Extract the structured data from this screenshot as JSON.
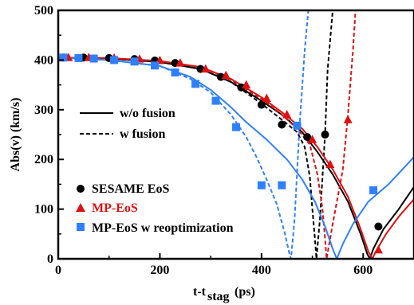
{
  "chart_data": {
    "type": "line",
    "xlabel": "t-t",
    "xlabel_sub": "stag",
    "xlabel_unit": "(ps)",
    "ylabel": "Abs(v) (km/s)",
    "xlim": [
      0,
      700
    ],
    "ylim": [
      0,
      500
    ],
    "xticks": [
      "0",
      "200",
      "400",
      "600"
    ],
    "yticks": [
      "0",
      "100",
      "200",
      "300",
      "400",
      "500"
    ],
    "grid": false,
    "colors": {
      "sesame": "#000000",
      "mp": "#dd1111",
      "reopt": "#2f80ff"
    },
    "line_legend": [
      {
        "label": "w/o fusion",
        "style": "solid"
      },
      {
        "label": "w fusion",
        "style": "dashed"
      }
    ],
    "series": [
      {
        "name": "SESAME EoS",
        "color": "#000000",
        "marker": "circle",
        "markers": [
          [
            10,
            405
          ],
          [
            50,
            405
          ],
          [
            100,
            404
          ],
          [
            150,
            402
          ],
          [
            190,
            399
          ],
          [
            230,
            394
          ],
          [
            280,
            382
          ],
          [
            320,
            366
          ],
          [
            360,
            345
          ],
          [
            400,
            310
          ],
          [
            440,
            270
          ],
          [
            490,
            245
          ],
          [
            525,
            250
          ],
          [
            630,
            65
          ]
        ],
        "solid": [
          [
            0,
            405
          ],
          [
            100,
            403
          ],
          [
            200,
            396
          ],
          [
            280,
            382
          ],
          [
            340,
            356
          ],
          [
            400,
            318
          ],
          [
            440,
            290
          ],
          [
            480,
            255
          ],
          [
            510,
            215
          ],
          [
            540,
            170
          ],
          [
            570,
            115
          ],
          [
            595,
            50
          ],
          [
            608,
            10
          ],
          [
            613,
            0
          ],
          [
            620,
            20
          ],
          [
            640,
            60
          ],
          [
            670,
            100
          ],
          [
            700,
            145
          ]
        ],
        "dashed": [
          [
            0,
            405
          ],
          [
            100,
            403
          ],
          [
            200,
            396
          ],
          [
            280,
            382
          ],
          [
            340,
            356
          ],
          [
            400,
            312
          ],
          [
            440,
            280
          ],
          [
            470,
            255
          ],
          [
            485,
            225
          ],
          [
            495,
            165
          ],
          [
            500,
            100
          ],
          [
            505,
            40
          ],
          [
            508,
            0
          ],
          [
            515,
            80
          ],
          [
            525,
            250
          ],
          [
            530,
            380
          ],
          [
            540,
            500
          ]
        ]
      },
      {
        "name": "MP-EoS",
        "color": "#dd1111",
        "marker": "triangle",
        "markers": [
          [
            20,
            405
          ],
          [
            60,
            405
          ],
          [
            110,
            404
          ],
          [
            160,
            402
          ],
          [
            200,
            399
          ],
          [
            240,
            394
          ],
          [
            290,
            382
          ],
          [
            330,
            369
          ],
          [
            370,
            350
          ],
          [
            410,
            323
          ],
          [
            450,
            290
          ],
          [
            500,
            240
          ],
          [
            535,
            190
          ],
          [
            570,
            280
          ],
          [
            630,
            18
          ]
        ],
        "solid": [
          [
            0,
            405
          ],
          [
            100,
            404
          ],
          [
            200,
            398
          ],
          [
            280,
            386
          ],
          [
            340,
            362
          ],
          [
            400,
            325
          ],
          [
            440,
            295
          ],
          [
            480,
            262
          ],
          [
            510,
            225
          ],
          [
            540,
            180
          ],
          [
            570,
            125
          ],
          [
            595,
            60
          ],
          [
            610,
            15
          ],
          [
            618,
            0
          ],
          [
            625,
            15
          ],
          [
            645,
            50
          ],
          [
            670,
            85
          ],
          [
            700,
            120
          ]
        ],
        "dashed": [
          [
            0,
            405
          ],
          [
            100,
            404
          ],
          [
            200,
            398
          ],
          [
            280,
            386
          ],
          [
            340,
            360
          ],
          [
            400,
            322
          ],
          [
            440,
            290
          ],
          [
            470,
            262
          ],
          [
            495,
            230
          ],
          [
            510,
            170
          ],
          [
            520,
            100
          ],
          [
            525,
            40
          ],
          [
            528,
            0
          ],
          [
            540,
            70
          ],
          [
            560,
            180
          ],
          [
            570,
            290
          ],
          [
            580,
            420
          ],
          [
            585,
            500
          ]
        ]
      },
      {
        "name": "MP-EoS w reoptimization",
        "color": "#2f80ff",
        "marker": "square",
        "markers": [
          [
            10,
            405
          ],
          [
            40,
            404
          ],
          [
            70,
            403
          ],
          [
            110,
            400
          ],
          [
            150,
            397
          ],
          [
            190,
            389
          ],
          [
            230,
            375
          ],
          [
            270,
            352
          ],
          [
            310,
            318
          ],
          [
            350,
            265
          ],
          [
            400,
            148
          ],
          [
            440,
            148
          ],
          [
            470,
            268
          ],
          [
            620,
            138
          ]
        ],
        "solid": [
          [
            0,
            405
          ],
          [
            100,
            400
          ],
          [
            200,
            388
          ],
          [
            260,
            366
          ],
          [
            300,
            340
          ],
          [
            340,
            305
          ],
          [
            370,
            275
          ],
          [
            410,
            240
          ],
          [
            450,
            200
          ],
          [
            480,
            160
          ],
          [
            505,
            115
          ],
          [
            525,
            65
          ],
          [
            540,
            20
          ],
          [
            548,
            0
          ],
          [
            560,
            30
          ],
          [
            580,
            70
          ],
          [
            610,
            115
          ],
          [
            650,
            150
          ],
          [
            700,
            205
          ]
        ],
        "dashed": [
          [
            0,
            405
          ],
          [
            100,
            400
          ],
          [
            200,
            388
          ],
          [
            260,
            362
          ],
          [
            300,
            335
          ],
          [
            340,
            290
          ],
          [
            370,
            245
          ],
          [
            390,
            205
          ],
          [
            410,
            160
          ],
          [
            430,
            110
          ],
          [
            445,
            55
          ],
          [
            455,
            10
          ],
          [
            458,
            0
          ],
          [
            465,
            80
          ],
          [
            475,
            270
          ],
          [
            485,
            420
          ],
          [
            492,
            500
          ]
        ]
      }
    ]
  }
}
